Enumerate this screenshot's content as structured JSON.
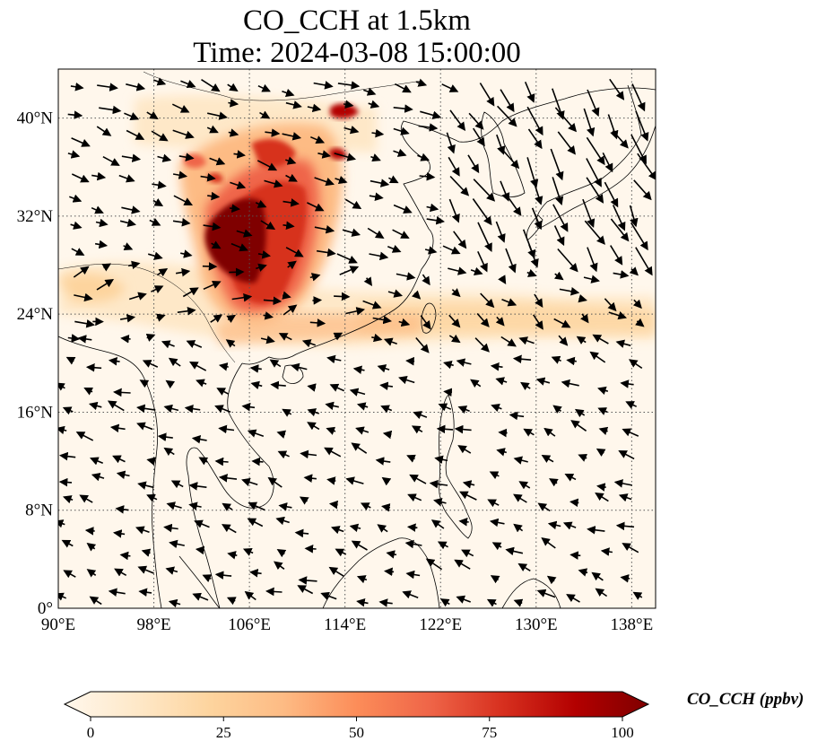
{
  "title": {
    "line1": "CO_CCH at 1.5km",
    "line2": "Time: 2024-03-08 15:00:00"
  },
  "map": {
    "lon_range": [
      90,
      140
    ],
    "lat_range": [
      0,
      44
    ],
    "lon_ticks": [
      "90°E",
      "98°E",
      "106°E",
      "114°E",
      "122°E",
      "130°E",
      "138°E"
    ],
    "lon_tick_values": [
      90,
      98,
      106,
      114,
      122,
      130,
      138
    ],
    "lat_ticks": [
      "0°",
      "8°N",
      "16°N",
      "24°N",
      "32°N",
      "40°N"
    ],
    "lat_tick_values": [
      0,
      8,
      16,
      24,
      32,
      40
    ],
    "gridlines": "dotted",
    "field": "CO_CCH",
    "overlay": "wind vectors"
  },
  "colorbar": {
    "label": "CO_CCH (ppbv)",
    "ticks": [
      "0",
      "25",
      "50",
      "75",
      "100"
    ],
    "tick_values": [
      0,
      25,
      50,
      75,
      100
    ],
    "range": [
      0,
      100
    ],
    "extend": "both",
    "colormap": "OrRd",
    "colors": [
      "#fff7ec",
      "#fee8c8",
      "#fdd49e",
      "#fdbb84",
      "#fc8d59",
      "#ef6548",
      "#d7301f",
      "#b30000",
      "#7f0000"
    ]
  }
}
